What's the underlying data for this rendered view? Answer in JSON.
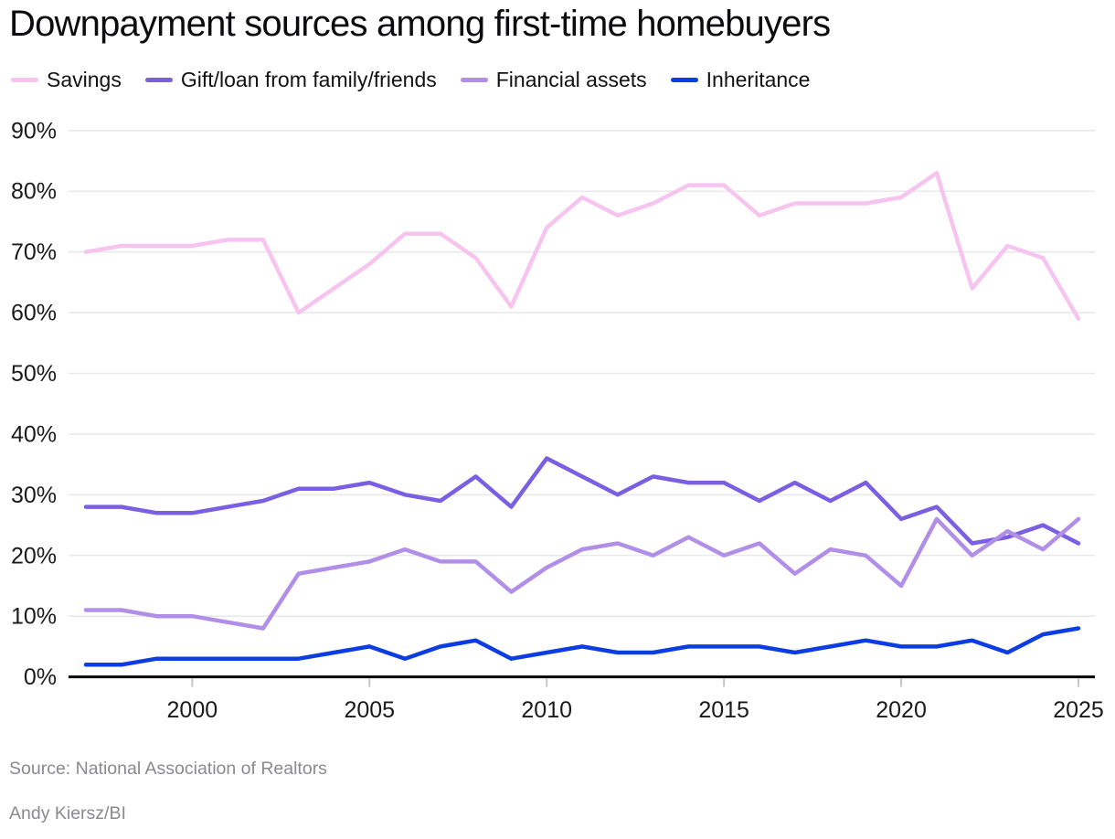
{
  "chart_data": {
    "type": "line",
    "title": "Downpayment sources among first-time homebuyers",
    "xlabel": "",
    "ylabel": "",
    "x": [
      1997,
      1998,
      1999,
      2000,
      2001,
      2002,
      2003,
      2004,
      2005,
      2006,
      2007,
      2008,
      2009,
      2010,
      2011,
      2012,
      2013,
      2014,
      2015,
      2016,
      2017,
      2018,
      2019,
      2020,
      2021,
      2022,
      2023,
      2024,
      2025
    ],
    "ylim": [
      0,
      90
    ],
    "grid": "horizontal",
    "legend_position": "top",
    "y_ticks": [
      {
        "v": 0,
        "label": "0%"
      },
      {
        "v": 10,
        "label": "10%"
      },
      {
        "v": 20,
        "label": "20%"
      },
      {
        "v": 30,
        "label": "30%"
      },
      {
        "v": 40,
        "label": "40%"
      },
      {
        "v": 50,
        "label": "50%"
      },
      {
        "v": 60,
        "label": "60%"
      },
      {
        "v": 70,
        "label": "70%"
      },
      {
        "v": 80,
        "label": "80%"
      },
      {
        "v": 90,
        "label": "90%"
      }
    ],
    "x_ticks": [
      {
        "v": 2000,
        "label": "2000"
      },
      {
        "v": 2005,
        "label": "2005"
      },
      {
        "v": 2010,
        "label": "2010"
      },
      {
        "v": 2015,
        "label": "2015"
      },
      {
        "v": 2020,
        "label": "2020"
      },
      {
        "v": 2025,
        "label": "2025"
      }
    ],
    "series": [
      {
        "name": "Savings",
        "color": "#f7c4f0",
        "values": [
          70,
          71,
          71,
          71,
          72,
          72,
          60,
          64,
          68,
          73,
          73,
          69,
          61,
          74,
          79,
          76,
          78,
          81,
          81,
          76,
          78,
          78,
          78,
          79,
          83,
          64,
          71,
          69,
          59
        ]
      },
      {
        "name": "Gift/loan from family/friends",
        "color": "#7a5fe3",
        "values": [
          28,
          28,
          27,
          27,
          28,
          29,
          31,
          31,
          32,
          30,
          29,
          33,
          28,
          36,
          33,
          30,
          33,
          32,
          32,
          29,
          32,
          29,
          32,
          26,
          28,
          22,
          23,
          25,
          22
        ]
      },
      {
        "name": "Financial assets",
        "color": "#b18fe8",
        "values": [
          11,
          11,
          10,
          10,
          9,
          8,
          17,
          18,
          19,
          21,
          19,
          19,
          14,
          18,
          21,
          22,
          20,
          23,
          20,
          22,
          17,
          21,
          20,
          15,
          26,
          20,
          24,
          21,
          26
        ]
      },
      {
        "name": "Inheritance",
        "color": "#0c3de3",
        "values": [
          2,
          2,
          3,
          3,
          3,
          3,
          3,
          4,
          5,
          3,
          5,
          6,
          3,
          4,
          5,
          4,
          4,
          5,
          5,
          5,
          4,
          5,
          6,
          5,
          5,
          6,
          4,
          7,
          8
        ]
      }
    ]
  },
  "source": {
    "attribution": "Source: National Association of Realtors",
    "byline": "Andy Kiersz/BI"
  },
  "colors": {
    "background": "#ffffff",
    "title_text": "#0c0c0e",
    "axis_label": "#1a1a1c",
    "gridline": "#e9e9e9",
    "baseline": "#000000",
    "tick": "#c6c6c9",
    "source_text": "#8a8a8e"
  }
}
